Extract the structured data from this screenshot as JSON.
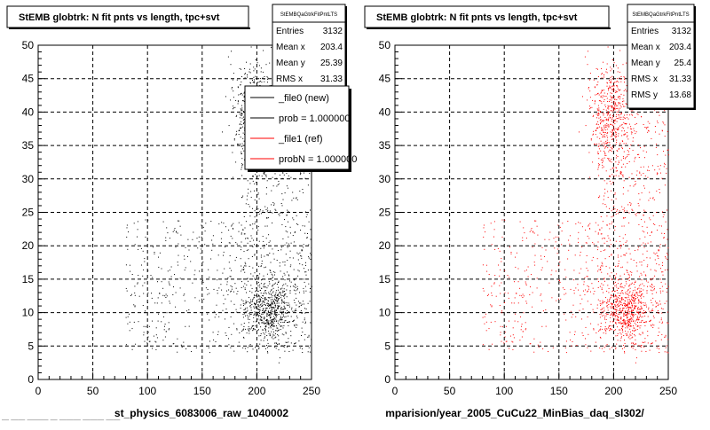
{
  "colors": {
    "background": "#ffffff",
    "new_points": "#000000",
    "ref_points": "#ff0000",
    "grid": "#000000",
    "stats_box_bg": "#ffffff",
    "legend_shadow": "#000000"
  },
  "chart_data": [
    {
      "type": "scatter",
      "title": "StEMB globtrk: N fit pnts vs length, tpc+svt",
      "xlabel": "st_physics_6083006_raw_1040002",
      "ylabel": "",
      "xlim": [
        0,
        250
      ],
      "ylim": [
        0,
        50
      ],
      "x_ticks": [
        "0",
        "50",
        "100",
        "150",
        "200",
        "250"
      ],
      "y_ticks": [
        "0",
        "5",
        "10",
        "15",
        "20",
        "25",
        "30",
        "35",
        "40",
        "45",
        "50"
      ],
      "grid": true,
      "series": [
        {
          "name": "_file0 (new)",
          "color": "#000000",
          "entries": 3132
        },
        {
          "name": "_file1 (ref)",
          "color": "#ff0000",
          "entries": 3132
        }
      ],
      "stats": {
        "header": "StEMBQaGtrkFitPntLTS",
        "rows": [
          {
            "label": "Entries",
            "value": "3132"
          },
          {
            "label": "Mean x",
            "value": "203.4"
          },
          {
            "label": "Mean y",
            "value": "25.39"
          },
          {
            "label": "RMS x",
            "value": "31.33"
          }
        ]
      },
      "legend": {
        "position": "top-right",
        "items": [
          {
            "label": "_file0 (new)",
            "color": "#000000"
          },
          {
            "label": "prob = 1.000000",
            "color": "#000000"
          },
          {
            "label": "_file1 (ref)",
            "color": "#ff0000"
          },
          {
            "label": "probN = 1.000000",
            "color": "#ff0000"
          }
        ]
      }
    },
    {
      "type": "scatter",
      "title": "StEMB globtrk: N fit pnts vs length, tpc+svt",
      "xlabel": "mparision/year_2005_CuCu22_MinBias_daq_sl302/",
      "ylabel": "",
      "xlim": [
        0,
        250
      ],
      "ylim": [
        0,
        50
      ],
      "x_ticks": [
        "0",
        "50",
        "100",
        "150",
        "200",
        "250"
      ],
      "y_ticks": [
        "0",
        "5",
        "10",
        "15",
        "20",
        "25",
        "30",
        "35",
        "40",
        "45",
        "50"
      ],
      "grid": true,
      "series": [
        {
          "name": "_file1 (ref)",
          "color": "#ff0000",
          "entries": 3132
        }
      ],
      "stats": {
        "header": "StEMBQaGtrkFitPntLTS",
        "rows": [
          {
            "label": "Entries",
            "value": "3132"
          },
          {
            "label": "Mean x",
            "value": "203.4"
          },
          {
            "label": "Mean y",
            "value": "25.4"
          },
          {
            "label": "RMS x",
            "value": "31.33"
          },
          {
            "label": "RMS y",
            "value": "13.68"
          }
        ]
      }
    }
  ],
  "footer_note": "— —— ——— — ——— ——— ——"
}
